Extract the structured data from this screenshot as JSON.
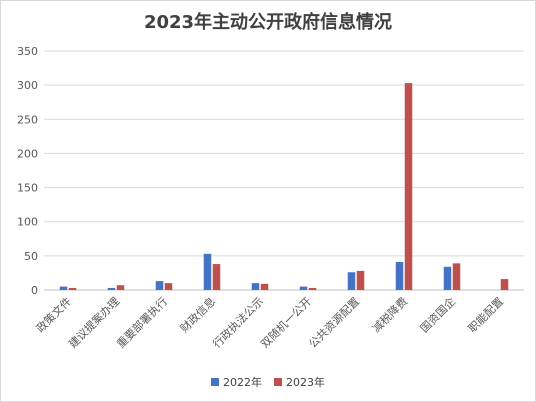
{
  "chart_data": {
    "type": "bar",
    "title": "2023年主动公开政府信息情况",
    "categories": [
      "政策文件",
      "建议提案办理",
      "重要部署执行",
      "财政信息",
      "行政执法公示",
      "双随机一公开",
      "公共资源配置",
      "减税降费",
      "国资国企",
      "职能配置"
    ],
    "series": [
      {
        "name": "2022年",
        "color": "#4472C4",
        "values": [
          5,
          3,
          13,
          53,
          10,
          5,
          26,
          41,
          34,
          0
        ]
      },
      {
        "name": "2023年",
        "color": "#C0504D",
        "values": [
          3,
          7,
          10,
          38,
          9,
          3,
          28,
          303,
          39,
          16
        ]
      }
    ],
    "ylim": [
      0,
      350
    ],
    "yticks": [
      0,
      50,
      100,
      150,
      200,
      250,
      300,
      350
    ],
    "grid": true,
    "legend_position": "bottom"
  }
}
